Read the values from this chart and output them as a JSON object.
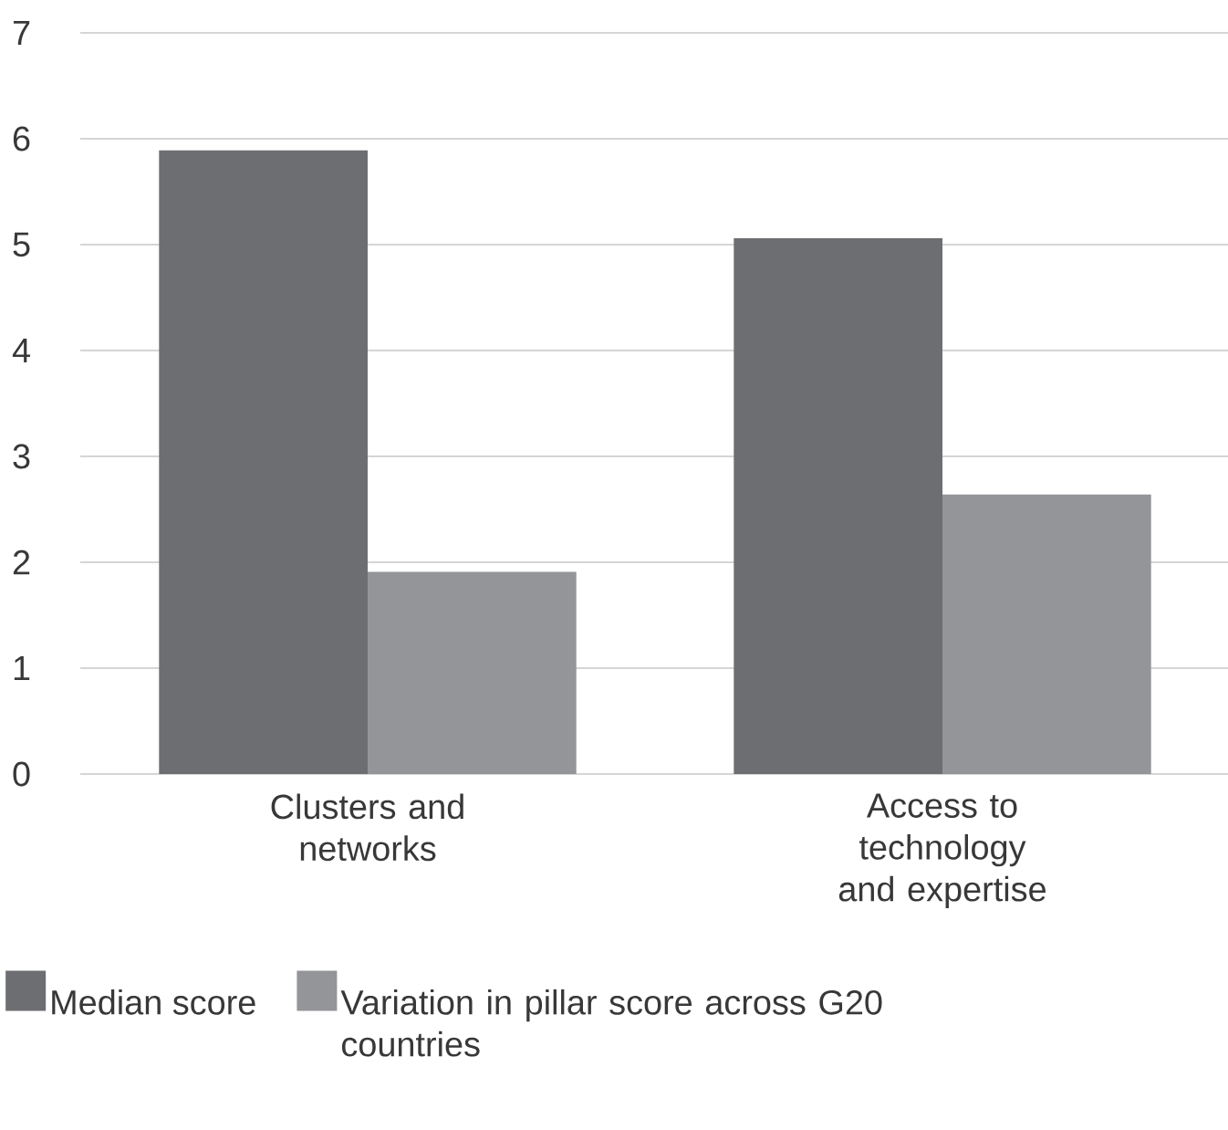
{
  "chart_data": {
    "type": "bar",
    "categories": [
      "Clusters and networks",
      "Access to technology and expertise"
    ],
    "series": [
      {
        "name": "Median score",
        "color": "#6d6e71",
        "values": [
          5.89,
          5.06
        ]
      },
      {
        "name": "Variation in pillar score across G20 countries",
        "color": "#939598",
        "values": [
          1.91,
          2.64
        ]
      }
    ],
    "ylim": [
      0,
      7
    ],
    "yticks": [
      0,
      1,
      2,
      3,
      4,
      5,
      6,
      7
    ],
    "grid": "y",
    "legend": "bottom"
  }
}
